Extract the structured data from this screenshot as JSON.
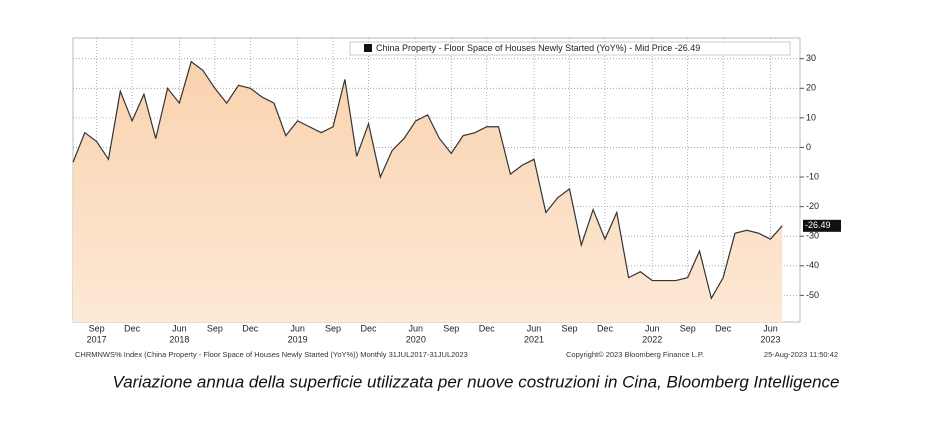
{
  "chart_data": {
    "type": "area",
    "legend": "China Property - Floor Space of Houses Newly Started (YoY%) - Mid Price -26.49",
    "footer_left": "CHRMNWS% Index (China Property - Floor Space of Houses Newly Started (YoY%)) Monthly 31JUL2017-31JUL2023",
    "footer_mid": "Copyright© 2023 Bloomberg Finance L.P.",
    "footer_right": "25-Aug-2023 11:50:42",
    "caption": "Variazione annua della superficie utilizzata per nuove costruzioni in Cina, Bloomberg Intelligence",
    "categories": [
      null,
      null,
      "Sep",
      null,
      null,
      "Dec",
      null,
      null,
      null,
      "Jun",
      null,
      null,
      "Sep",
      null,
      null,
      "Dec",
      null,
      null,
      null,
      "Jun",
      null,
      null,
      "Sep",
      null,
      null,
      "Dec",
      null,
      null,
      null,
      "Jun",
      null,
      null,
      "Sep",
      null,
      null,
      "Dec",
      null,
      null,
      null,
      "Jun",
      null,
      null,
      "Sep",
      null,
      null,
      "Dec",
      null,
      null,
      null,
      "Jun",
      null,
      null,
      "Sep",
      null,
      null,
      "Dec",
      null,
      null,
      null,
      "Jun",
      null
    ],
    "years": [
      null,
      null,
      "2017",
      null,
      null,
      null,
      null,
      null,
      null,
      "2018",
      null,
      null,
      null,
      null,
      null,
      null,
      null,
      null,
      null,
      "2019",
      null,
      null,
      null,
      null,
      null,
      null,
      null,
      null,
      null,
      "2020",
      null,
      null,
      null,
      null,
      null,
      null,
      null,
      null,
      null,
      "2021",
      null,
      null,
      null,
      null,
      null,
      null,
      null,
      null,
      null,
      "2022",
      null,
      null,
      null,
      null,
      null,
      null,
      null,
      null,
      null,
      "2023",
      null
    ],
    "values": [
      -5,
      5,
      2,
      -4,
      19,
      9,
      18,
      3,
      20,
      15,
      29,
      26,
      20,
      15,
      21,
      20,
      17,
      15,
      4,
      9,
      7,
      5,
      7,
      23,
      -3,
      8,
      -10,
      -1,
      3,
      9,
      11,
      3,
      -2,
      4,
      5,
      7,
      7,
      -9,
      -6,
      -4,
      -22,
      -17,
      -14,
      -33,
      -21,
      -31,
      -22,
      -44,
      -42,
      -45,
      -45,
      -45,
      -44,
      -35,
      -51,
      -44,
      -29,
      -28,
      -29,
      -31,
      -26.49
    ],
    "color": "#fad9bb",
    "line_color": "#333333",
    "ylim": [
      -59,
      37
    ],
    "yticks": [
      30,
      20,
      10,
      0,
      -10,
      -20,
      -30,
      -40,
      -50
    ],
    "grid": true
  }
}
